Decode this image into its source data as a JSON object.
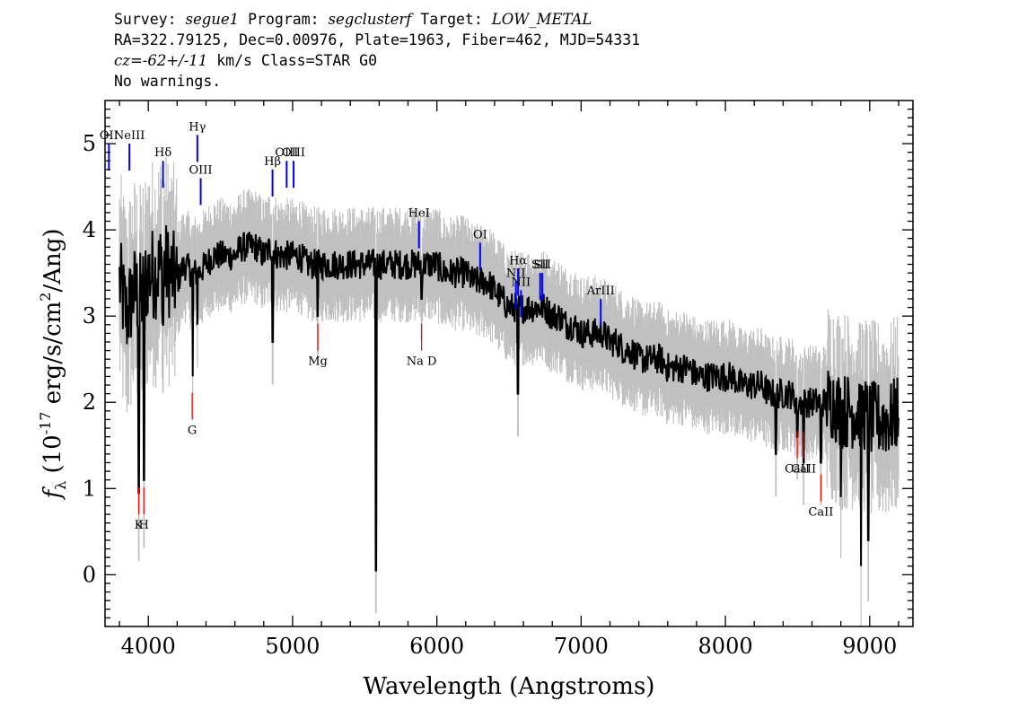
{
  "header": {
    "survey_key": "Survey:",
    "survey_val": "segue1",
    "program_key": "Program:",
    "program_val": "segclusterf",
    "target_key": "Target:",
    "target_val": "LOW_METAL",
    "coords": "RA=322.79125, Dec=0.00976, Plate=1963, Fiber=462, MJD=54331",
    "cz_key": "cz",
    "cz_val": "=-62+/-11",
    "cz_rest": "km/s Class=STAR G0",
    "warnings": "No warnings."
  },
  "colors": {
    "flux": "#000000",
    "error": "#c0c0c0",
    "emission": "#0000ff",
    "absorption": "#ff0000"
  },
  "chart_data": {
    "type": "line",
    "xlabel": "Wavelength (Angstroms)",
    "ylabel": "f_λ (10^-17 erg/s/cm^2/Ang)",
    "xlim": [
      3700,
      9300
    ],
    "ylim": [
      -0.6,
      5.5
    ],
    "xticks": [
      4000,
      5000,
      6000,
      7000,
      8000,
      9000
    ],
    "yticks": [
      0,
      1,
      2,
      3,
      4,
      5
    ],
    "series": [
      {
        "role": "flux",
        "x": [
          3800,
          3850,
          3900,
          3950,
          4000,
          4050,
          4100,
          4150,
          4200,
          4250,
          4300,
          4350,
          4400,
          4450,
          4500,
          4550,
          4600,
          4650,
          4700,
          4750,
          4800,
          4850,
          4900,
          4950,
          5000,
          5050,
          5100,
          5150,
          5200,
          5250,
          5300,
          5350,
          5400,
          5450,
          5500,
          5550,
          5600,
          5650,
          5700,
          5750,
          5800,
          5850,
          5900,
          5950,
          6000,
          6050,
          6100,
          6150,
          6200,
          6250,
          6300,
          6350,
          6400,
          6450,
          6500,
          6550,
          6600,
          6650,
          6700,
          6750,
          6800,
          6850,
          6900,
          6950,
          7000,
          7050,
          7100,
          7150,
          7200,
          7250,
          7300,
          7350,
          7400,
          7450,
          7500,
          7550,
          7600,
          7650,
          7700,
          7750,
          7800,
          7850,
          7900,
          7950,
          8000,
          8050,
          8100,
          8150,
          8200,
          8250,
          8300,
          8350,
          8400,
          8450,
          8500,
          8550,
          8600,
          8650,
          8700,
          8750,
          8800,
          8850,
          8900,
          8950,
          9000,
          9050,
          9100,
          9150,
          9200
        ],
        "y": [
          3.4,
          3.0,
          3.3,
          3.2,
          3.5,
          3.5,
          3.6,
          3.5,
          3.4,
          3.6,
          3.5,
          3.5,
          3.6,
          3.7,
          3.7,
          3.7,
          3.7,
          3.8,
          3.8,
          3.8,
          3.7,
          3.8,
          3.7,
          3.7,
          3.7,
          3.7,
          3.6,
          3.6,
          3.6,
          3.6,
          3.6,
          3.6,
          3.6,
          3.6,
          3.6,
          3.6,
          3.6,
          3.6,
          3.6,
          3.6,
          3.6,
          3.6,
          3.6,
          3.6,
          3.6,
          3.5,
          3.5,
          3.5,
          3.5,
          3.4,
          3.4,
          3.4,
          3.3,
          3.2,
          3.1,
          3.1,
          3.1,
          3.1,
          3.1,
          3.1,
          3.0,
          3.0,
          2.9,
          2.9,
          2.8,
          2.8,
          2.8,
          2.8,
          2.7,
          2.7,
          2.6,
          2.6,
          2.5,
          2.5,
          2.5,
          2.5,
          2.4,
          2.4,
          2.4,
          2.4,
          2.3,
          2.3,
          2.3,
          2.3,
          2.3,
          2.3,
          2.2,
          2.2,
          2.2,
          2.2,
          2.1,
          2.1,
          2.1,
          2.1,
          2.0,
          2.0,
          2.0,
          2.0,
          2.0,
          2.0,
          1.9,
          1.9,
          1.9,
          1.9,
          1.8,
          1.8,
          1.8,
          1.8,
          1.9
        ]
      }
    ],
    "dips": [
      {
        "x": 3934,
        "y": 0.95
      },
      {
        "x": 3969,
        "y": 1.1
      },
      {
        "x": 4102,
        "y": 2.9
      },
      {
        "x": 4308,
        "y": 2.3
      },
      {
        "x": 4340,
        "y": 2.9
      },
      {
        "x": 4861,
        "y": 2.7
      },
      {
        "x": 5175,
        "y": 3.0
      },
      {
        "x": 5577,
        "y": 0.05
      },
      {
        "x": 5893,
        "y": 3.2
      },
      {
        "x": 6563,
        "y": 2.1
      },
      {
        "x": 8350,
        "y": 1.4
      },
      {
        "x": 8498,
        "y": 1.6
      },
      {
        "x": 8542,
        "y": 1.3
      },
      {
        "x": 8662,
        "y": 1.3
      },
      {
        "x": 8800,
        "y": 0.9
      },
      {
        "x": 8940,
        "y": 0.1
      },
      {
        "x": 8990,
        "y": 0.4
      }
    ],
    "emission_lines": [
      {
        "label": "OII",
        "x": 3727,
        "y": 5.0
      },
      {
        "label": "NeIII",
        "x": 3869,
        "y": 5.0
      },
      {
        "label": "Hδ",
        "x": 4102,
        "y": 4.8
      },
      {
        "label": "Hγ",
        "x": 4340,
        "y": 5.1
      },
      {
        "label": "OIII",
        "x": 4363,
        "y": 4.6
      },
      {
        "label": "Hβ",
        "x": 4861,
        "y": 4.7
      },
      {
        "label": "OIII",
        "x": 4959,
        "y": 4.8
      },
      {
        "label": "OIII",
        "x": 5007,
        "y": 4.8
      },
      {
        "label": "HeI",
        "x": 5876,
        "y": 4.1
      },
      {
        "label": "OI",
        "x": 6300,
        "y": 3.85
      },
      {
        "label": "NII",
        "x": 6548,
        "y": 3.4
      },
      {
        "label": "Hα",
        "x": 6563,
        "y": 3.55
      },
      {
        "label": "NII",
        "x": 6583,
        "y": 3.3
      },
      {
        "label": "SII",
        "x": 6716,
        "y": 3.5
      },
      {
        "label": "SII",
        "x": 6731,
        "y": 3.5
      },
      {
        "label": "ArIII",
        "x": 7136,
        "y": 3.2
      }
    ],
    "absorption_lines": [
      {
        "label": "K",
        "x": 3934,
        "y": 0.7
      },
      {
        "label": "H",
        "x": 3969,
        "y": 0.7
      },
      {
        "label": "G",
        "x": 4304,
        "y": 1.8
      },
      {
        "label": "Mg",
        "x": 5175,
        "y": 2.6
      },
      {
        "label": "Na D",
        "x": 5894,
        "y": 2.6
      },
      {
        "label": "CaII",
        "x": 8498,
        "y": 1.35
      },
      {
        "label": "CaII",
        "x": 8542,
        "y": 1.35
      },
      {
        "label": "CaII",
        "x": 8662,
        "y": 0.85
      }
    ]
  }
}
